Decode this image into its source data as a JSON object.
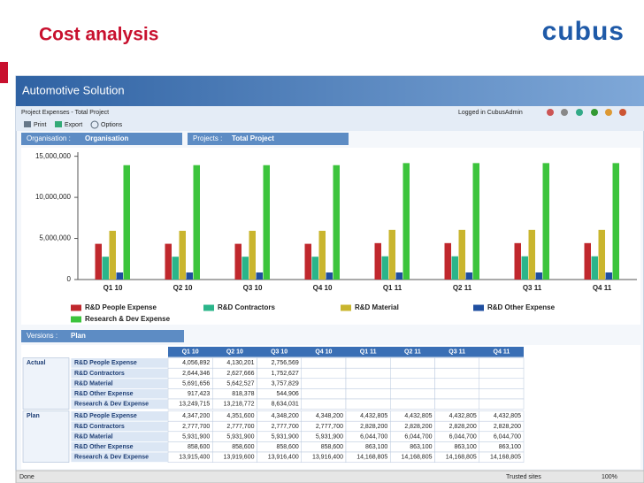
{
  "slide": {
    "title": "Cost analysis",
    "logo": "cubus"
  },
  "app": {
    "title": "Automotive Solution",
    "breadcrumb": "Project Expenses - Total Project",
    "login": "Logged in CubusAdmin",
    "toolbar": [
      "Print",
      "Export",
      "Options"
    ]
  },
  "filters": {
    "organisation_label": "Organisation :",
    "organisation": "Organisation",
    "projects_label": "Projects :",
    "projects": "Total Project"
  },
  "chart_data": {
    "type": "bar",
    "categories": [
      "Q1 10",
      "Q2 10",
      "Q3 10",
      "Q4 10",
      "Q1 11",
      "Q2 11",
      "Q3 11",
      "Q4 11"
    ],
    "series": [
      {
        "name": "R&D People Expense",
        "color": "#c0282d",
        "values": [
          4347200,
          4351600,
          4348200,
          4348200,
          4432805,
          4432805,
          4432805,
          4432805
        ]
      },
      {
        "name": "R&D Contractors",
        "color": "#2bb58a",
        "values": [
          2777700,
          2777700,
          2777700,
          2777700,
          2828200,
          2828200,
          2828200,
          2828200
        ]
      },
      {
        "name": "R&D Material",
        "color": "#c9b52e",
        "values": [
          5931900,
          5931900,
          5931900,
          5931900,
          6044700,
          6044700,
          6044700,
          6044700
        ]
      },
      {
        "name": "R&D Other Expense",
        "color": "#1f4fa0",
        "values": [
          858600,
          858600,
          858600,
          858600,
          863100,
          863100,
          863100,
          863100
        ]
      },
      {
        "name": "Research & Dev Expense",
        "color": "#3cc43c",
        "values": [
          13915400,
          13919600,
          13916400,
          13916400,
          14168805,
          14168805,
          14168805,
          14168805
        ]
      }
    ],
    "ylim": [
      0,
      15500000
    ],
    "yticks": [
      0,
      {
        "value": 5000000,
        "label": "5,000,000"
      },
      {
        "value": 10000000,
        "label": "10,000,000"
      },
      {
        "value": 15000000,
        "label": "15,000,000"
      }
    ]
  },
  "versions": {
    "label": "Versions :",
    "value": "Plan"
  },
  "table": {
    "columns": [
      "Q1 10",
      "Q2 10",
      "Q3 10",
      "Q4 10",
      "Q1 11",
      "Q2 11",
      "Q3 11",
      "Q4 11"
    ],
    "groups": [
      {
        "name": "Actual",
        "rows": [
          {
            "label": "R&D People Expense",
            "cells": [
              "4,056,892",
              "4,130,201",
              "2,756,569"
            ]
          },
          {
            "label": "R&D Contractors",
            "cells": [
              "2,644,346",
              "2,627,666",
              "1,752,627"
            ]
          },
          {
            "label": "R&D Material",
            "cells": [
              "5,691,656",
              "5,642,527",
              "3,757,829"
            ]
          },
          {
            "label": "R&D Other Expense",
            "cells": [
              "917,423",
              "818,378",
              "544,906"
            ]
          },
          {
            "label": "Research & Dev Expense",
            "cells": [
              "13,249,715",
              "13,218,772",
              "8,634,031"
            ]
          }
        ]
      },
      {
        "name": "Plan",
        "rows": [
          {
            "label": "R&D People Expense",
            "cells": [
              "4,347,200",
              "4,351,600",
              "4,348,200",
              "4,348,200",
              "4,432,805",
              "4,432,805",
              "4,432,805",
              "4,432,805"
            ]
          },
          {
            "label": "R&D Contractors",
            "cells": [
              "2,777,700",
              "2,777,700",
              "2,777,700",
              "2,777,700",
              "2,828,200",
              "2,828,200",
              "2,828,200",
              "2,828,200"
            ]
          },
          {
            "label": "R&D Material",
            "cells": [
              "5,931,900",
              "5,931,900",
              "5,931,900",
              "5,931,900",
              "6,044,700",
              "6,044,700",
              "6,044,700",
              "6,044,700"
            ]
          },
          {
            "label": "R&D Other Expense",
            "cells": [
              "858,600",
              "858,600",
              "858,600",
              "858,600",
              "863,100",
              "863,100",
              "863,100",
              "863,100"
            ]
          },
          {
            "label": "Research & Dev Expense",
            "cells": [
              "13,915,400",
              "13,919,600",
              "13,916,400",
              "13,916,400",
              "14,168,805",
              "14,168,805",
              "14,168,805",
              "14,168,805"
            ]
          }
        ]
      }
    ]
  },
  "status": {
    "left": "Done",
    "zone": "Trusted sites",
    "zoom": "100%"
  }
}
